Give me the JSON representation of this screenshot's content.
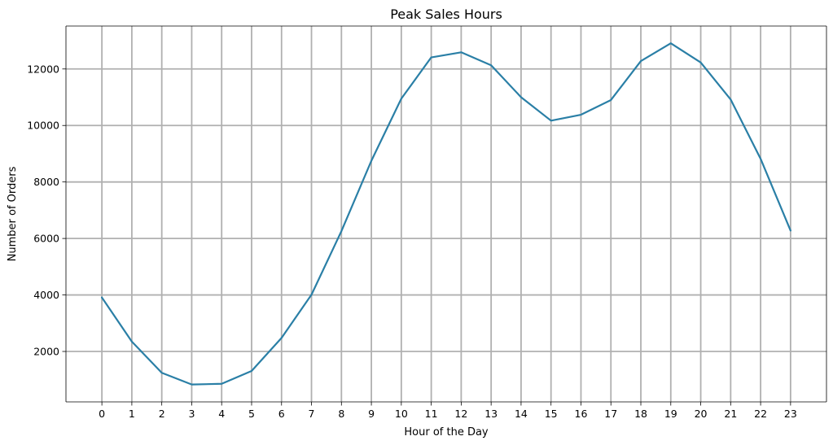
{
  "chart_data": {
    "type": "line",
    "title": "Peak Sales Hours",
    "xlabel": "Hour of the Day",
    "ylabel": "Number of Orders",
    "x": [
      0,
      1,
      2,
      3,
      4,
      5,
      6,
      7,
      8,
      9,
      10,
      11,
      12,
      13,
      14,
      15,
      16,
      17,
      18,
      19,
      20,
      21,
      22,
      23
    ],
    "series": [
      {
        "values": [
          3910,
          2350,
          1245,
          830,
          855,
          1310,
          2480,
          4010,
          6260,
          8750,
          10950,
          12410,
          12590,
          12130,
          11000,
          10170,
          10380,
          10900,
          12280,
          12910,
          12230,
          10920,
          8820,
          6280
        ]
      }
    ],
    "xticks": [
      "0",
      "1",
      "2",
      "3",
      "4",
      "5",
      "6",
      "7",
      "8",
      "9",
      "10",
      "11",
      "12",
      "13",
      "14",
      "15",
      "16",
      "17",
      "18",
      "19",
      "20",
      "21",
      "22",
      "23"
    ],
    "yticks": [
      "2000",
      "4000",
      "6000",
      "8000",
      "10000",
      "12000"
    ],
    "yticks_values": [
      2000,
      4000,
      6000,
      8000,
      10000,
      12000
    ],
    "xlim": [
      -1.2,
      24.2
    ],
    "ylim": [
      215,
      13520
    ],
    "grid": true,
    "legend": "none",
    "colors": {
      "line": "#2a7fa6",
      "grid": "#b0b0b0",
      "axes": "#000000"
    }
  }
}
